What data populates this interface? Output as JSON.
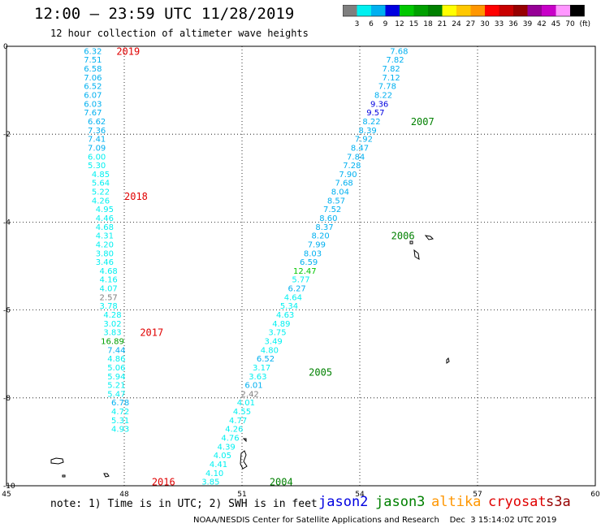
{
  "header": {
    "title": "12:00 – 23:59 UTC 11/28/2019",
    "subtitle": "12 hour collection of altimeter wave heights"
  },
  "legend": {
    "unit_label": "(ft)",
    "colors": [
      "#7f7f7f",
      "#00f0f0",
      "#00b0f0",
      "#0000e0",
      "#00c800",
      "#00a000",
      "#008000",
      "#ffff00",
      "#ffc800",
      "#ff9600",
      "#ff0000",
      "#c80000",
      "#960000",
      "#960096",
      "#c800c8",
      "#ff96ff",
      "#000000"
    ],
    "ticks": [
      "3",
      "6",
      "9",
      "12",
      "15",
      "18",
      "21",
      "24",
      "27",
      "30",
      "33",
      "36",
      "39",
      "42",
      "45",
      "70"
    ]
  },
  "map": {
    "x_ticks": [
      "45",
      "48",
      "51",
      "54",
      "57",
      "60"
    ],
    "y_ticks": [
      "0",
      "-2",
      "-4",
      "-6",
      "-8",
      "-10"
    ]
  },
  "chart_data": {
    "type": "scatter",
    "xlim": [
      45,
      60
    ],
    "ylim": [
      -10,
      0
    ],
    "grid": true,
    "series": [
      {
        "track": "west",
        "points": [
          {
            "x": 47.2,
            "y": -0.1,
            "v": "6.32",
            "c": "#00b0f0"
          },
          {
            "x": 47.2,
            "y": -0.3,
            "v": "7.51",
            "c": "#00b0f0"
          },
          {
            "x": 47.2,
            "y": -0.5,
            "v": "6.58",
            "c": "#00b0f0"
          },
          {
            "x": 47.2,
            "y": -0.7,
            "v": "7.06",
            "c": "#00b0f0"
          },
          {
            "x": 47.2,
            "y": -0.9,
            "v": "6.52",
            "c": "#00b0f0"
          },
          {
            "x": 47.2,
            "y": -1.1,
            "v": "6.07",
            "c": "#00b0f0"
          },
          {
            "x": 47.2,
            "y": -1.3,
            "v": "6.03",
            "c": "#00b0f0"
          },
          {
            "x": 47.2,
            "y": -1.5,
            "v": "7.67",
            "c": "#00b0f0"
          },
          {
            "x": 47.3,
            "y": -1.7,
            "v": "6.62",
            "c": "#00b0f0"
          },
          {
            "x": 47.3,
            "y": -1.9,
            "v": "7.36",
            "c": "#00b0f0"
          },
          {
            "x": 47.3,
            "y": -2.1,
            "v": "7.41",
            "c": "#00b0f0"
          },
          {
            "x": 47.3,
            "y": -2.3,
            "v": "7.09",
            "c": "#00b0f0"
          },
          {
            "x": 47.3,
            "y": -2.5,
            "v": "6.00",
            "c": "#00f0f0"
          },
          {
            "x": 47.3,
            "y": -2.7,
            "v": "5.30",
            "c": "#00f0f0"
          },
          {
            "x": 47.4,
            "y": -2.9,
            "v": "4.85",
            "c": "#00f0f0"
          },
          {
            "x": 47.4,
            "y": -3.1,
            "v": "5.64",
            "c": "#00f0f0"
          },
          {
            "x": 47.4,
            "y": -3.3,
            "v": "5.22",
            "c": "#00f0f0"
          },
          {
            "x": 47.4,
            "y": -3.5,
            "v": "4.26",
            "c": "#00f0f0"
          },
          {
            "x": 47.5,
            "y": -3.7,
            "v": "4.95",
            "c": "#00f0f0"
          },
          {
            "x": 47.5,
            "y": -3.9,
            "v": "4.46",
            "c": "#00f0f0"
          },
          {
            "x": 47.5,
            "y": -4.1,
            "v": "4.68",
            "c": "#00f0f0"
          },
          {
            "x": 47.5,
            "y": -4.3,
            "v": "4.31",
            "c": "#00f0f0"
          },
          {
            "x": 47.5,
            "y": -4.5,
            "v": "4.20",
            "c": "#00f0f0"
          },
          {
            "x": 47.5,
            "y": -4.7,
            "v": "3.80",
            "c": "#00f0f0"
          },
          {
            "x": 47.5,
            "y": -4.9,
            "v": "3.46",
            "c": "#00f0f0"
          },
          {
            "x": 47.6,
            "y": -5.1,
            "v": "4.68",
            "c": "#00f0f0"
          },
          {
            "x": 47.6,
            "y": -5.3,
            "v": "4.16",
            "c": "#00f0f0"
          },
          {
            "x": 47.6,
            "y": -5.5,
            "v": "4.07",
            "c": "#00f0f0"
          },
          {
            "x": 47.6,
            "y": -5.7,
            "v": "2.57",
            "c": "#7f7f7f"
          },
          {
            "x": 47.6,
            "y": -5.9,
            "v": "3.78",
            "c": "#00f0f0"
          },
          {
            "x": 47.7,
            "y": -6.1,
            "v": "4.28",
            "c": "#00f0f0"
          },
          {
            "x": 47.7,
            "y": -6.3,
            "v": "3.02",
            "c": "#00f0f0"
          },
          {
            "x": 47.7,
            "y": -6.5,
            "v": "3.83",
            "c": "#00f0f0"
          },
          {
            "x": 47.7,
            "y": -6.7,
            "v": "16.89",
            "c": "#00a000"
          },
          {
            "x": 47.8,
            "y": -6.9,
            "v": "7.44",
            "c": "#00b0f0"
          },
          {
            "x": 47.8,
            "y": -7.1,
            "v": "4.86",
            "c": "#00f0f0"
          },
          {
            "x": 47.8,
            "y": -7.3,
            "v": "5.06",
            "c": "#00f0f0"
          },
          {
            "x": 47.8,
            "y": -7.5,
            "v": "5.94",
            "c": "#00f0f0"
          },
          {
            "x": 47.8,
            "y": -7.7,
            "v": "5.21",
            "c": "#00f0f0"
          },
          {
            "x": 47.8,
            "y": -7.9,
            "v": "5.47",
            "c": "#00f0f0"
          },
          {
            "x": 47.9,
            "y": -8.1,
            "v": "6.78",
            "c": "#00b0f0"
          },
          {
            "x": 47.9,
            "y": -8.3,
            "v": "4.72",
            "c": "#00f0f0"
          },
          {
            "x": 47.9,
            "y": -8.5,
            "v": "5.31",
            "c": "#00f0f0"
          },
          {
            "x": 47.9,
            "y": -8.7,
            "v": "4.93",
            "c": "#00f0f0"
          }
        ]
      },
      {
        "track": "east",
        "points": [
          {
            "x": 55.0,
            "y": -0.1,
            "v": "7.68",
            "c": "#00b0f0"
          },
          {
            "x": 54.9,
            "y": -0.3,
            "v": "7.82",
            "c": "#00b0f0"
          },
          {
            "x": 54.8,
            "y": -0.5,
            "v": "7.82",
            "c": "#00b0f0"
          },
          {
            "x": 54.8,
            "y": -0.7,
            "v": "7.12",
            "c": "#00b0f0"
          },
          {
            "x": 54.7,
            "y": -0.9,
            "v": "7.78",
            "c": "#00b0f0"
          },
          {
            "x": 54.6,
            "y": -1.1,
            "v": "8.22",
            "c": "#00b0f0"
          },
          {
            "x": 54.5,
            "y": -1.3,
            "v": "9.36",
            "c": "#0000e0"
          },
          {
            "x": 54.4,
            "y": -1.5,
            "v": "9.57",
            "c": "#0000e0"
          },
          {
            "x": 54.3,
            "y": -1.7,
            "v": "8.22",
            "c": "#00b0f0"
          },
          {
            "x": 54.2,
            "y": -1.9,
            "v": "8.39",
            "c": "#00b0f0"
          },
          {
            "x": 54.1,
            "y": -2.1,
            "v": "7.92",
            "c": "#00b0f0"
          },
          {
            "x": 54.0,
            "y": -2.3,
            "v": "8.47",
            "c": "#00b0f0"
          },
          {
            "x": 53.9,
            "y": -2.5,
            "v": "7.84",
            "c": "#00b0f0"
          },
          {
            "x": 53.8,
            "y": -2.7,
            "v": "7.28",
            "c": "#00b0f0"
          },
          {
            "x": 53.7,
            "y": -2.9,
            "v": "7.90",
            "c": "#00b0f0"
          },
          {
            "x": 53.6,
            "y": -3.1,
            "v": "7.68",
            "c": "#00b0f0"
          },
          {
            "x": 53.5,
            "y": -3.3,
            "v": "8.04",
            "c": "#00b0f0"
          },
          {
            "x": 53.4,
            "y": -3.5,
            "v": "8.57",
            "c": "#00b0f0"
          },
          {
            "x": 53.3,
            "y": -3.7,
            "v": "7.52",
            "c": "#00b0f0"
          },
          {
            "x": 53.2,
            "y": -3.9,
            "v": "8.60",
            "c": "#00b0f0"
          },
          {
            "x": 53.1,
            "y": -4.1,
            "v": "8.37",
            "c": "#00b0f0"
          },
          {
            "x": 53.0,
            "y": -4.3,
            "v": "8.20",
            "c": "#00b0f0"
          },
          {
            "x": 52.9,
            "y": -4.5,
            "v": "7.99",
            "c": "#00b0f0"
          },
          {
            "x": 52.8,
            "y": -4.7,
            "v": "8.03",
            "c": "#00b0f0"
          },
          {
            "x": 52.7,
            "y": -4.9,
            "v": "6.59",
            "c": "#00b0f0"
          },
          {
            "x": 52.6,
            "y": -5.1,
            "v": "12.47",
            "c": "#00c800"
          },
          {
            "x": 52.5,
            "y": -5.3,
            "v": "5.77",
            "c": "#00f0f0"
          },
          {
            "x": 52.4,
            "y": -5.5,
            "v": "6.27",
            "c": "#00b0f0"
          },
          {
            "x": 52.3,
            "y": -5.7,
            "v": "4.64",
            "c": "#00f0f0"
          },
          {
            "x": 52.2,
            "y": -5.9,
            "v": "5.34",
            "c": "#00f0f0"
          },
          {
            "x": 52.1,
            "y": -6.1,
            "v": "4.63",
            "c": "#00f0f0"
          },
          {
            "x": 52.0,
            "y": -6.3,
            "v": "4.89",
            "c": "#00f0f0"
          },
          {
            "x": 51.9,
            "y": -6.5,
            "v": "3.75",
            "c": "#00f0f0"
          },
          {
            "x": 51.8,
            "y": -6.7,
            "v": "3.49",
            "c": "#00f0f0"
          },
          {
            "x": 51.7,
            "y": -6.9,
            "v": "4.80",
            "c": "#00f0f0"
          },
          {
            "x": 51.6,
            "y": -7.1,
            "v": "6.52",
            "c": "#00b0f0"
          },
          {
            "x": 51.5,
            "y": -7.3,
            "v": "3.17",
            "c": "#00f0f0"
          },
          {
            "x": 51.4,
            "y": -7.5,
            "v": "3.63",
            "c": "#00f0f0"
          },
          {
            "x": 51.3,
            "y": -7.7,
            "v": "6.01",
            "c": "#00b0f0"
          },
          {
            "x": 51.2,
            "y": -7.9,
            "v": "2.42",
            "c": "#7f7f7f"
          },
          {
            "x": 51.1,
            "y": -8.1,
            "v": "4.01",
            "c": "#00f0f0"
          },
          {
            "x": 51.0,
            "y": -8.3,
            "v": "4.55",
            "c": "#00f0f0"
          },
          {
            "x": 50.9,
            "y": -8.5,
            "v": "4.77",
            "c": "#00f0f0"
          },
          {
            "x": 50.8,
            "y": -8.7,
            "v": "4.26",
            "c": "#00f0f0"
          },
          {
            "x": 50.7,
            "y": -8.9,
            "v": "4.76",
            "c": "#00f0f0"
          },
          {
            "x": 50.6,
            "y": -9.1,
            "v": "4.39",
            "c": "#00f0f0"
          },
          {
            "x": 50.5,
            "y": -9.3,
            "v": "4.05",
            "c": "#00f0f0"
          },
          {
            "x": 50.4,
            "y": -9.5,
            "v": "4.41",
            "c": "#00f0f0"
          },
          {
            "x": 50.3,
            "y": -9.7,
            "v": "4.10",
            "c": "#00f0f0"
          },
          {
            "x": 50.2,
            "y": -9.9,
            "v": "3.85",
            "c": "#00f0f0"
          }
        ]
      }
    ],
    "annotations": [
      {
        "text": "2019",
        "color": "#e00000",
        "x": 47.8,
        "y": -0.1
      },
      {
        "text": "2018",
        "color": "#e00000",
        "x": 48.0,
        "y": -3.4
      },
      {
        "text": "2017",
        "color": "#e00000",
        "x": 48.4,
        "y": -6.5
      },
      {
        "text": "2016",
        "color": "#e00000",
        "x": 48.7,
        "y": -9.9
      },
      {
        "text": "2007",
        "color": "#008000",
        "x": 55.3,
        "y": -1.7
      },
      {
        "text": "2006",
        "color": "#008000",
        "x": 54.8,
        "y": -4.3
      },
      {
        "text": "2005",
        "color": "#008000",
        "x": 52.7,
        "y": -7.4
      },
      {
        "text": "2004",
        "color": "#008000",
        "x": 51.7,
        "y": -9.9
      }
    ]
  },
  "footer": {
    "note": "note: 1) Time is in UTC; 2) SWH is in feet",
    "satellites": [
      {
        "name": "jason2",
        "color": "#0000e0"
      },
      {
        "name": "jason3",
        "color": "#008000"
      },
      {
        "name": "altika",
        "color": "#ff9600"
      },
      {
        "name": "cryosat",
        "color": "#e00000"
      },
      {
        "name": "s3a",
        "color": "#960000"
      }
    ],
    "credit": "NOAA/NESDIS Center for Satellite Applications and Research    Dec  3 15:14:02 UTC 2019"
  }
}
